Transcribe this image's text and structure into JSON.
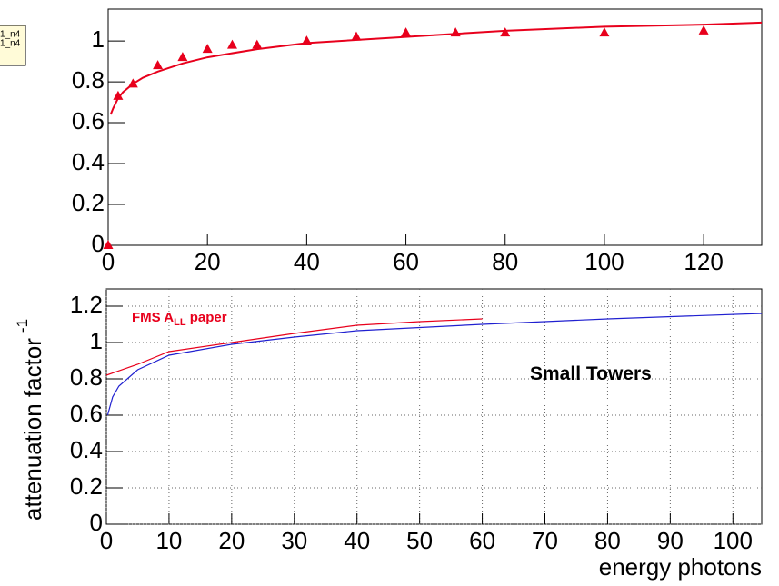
{
  "chart_data": [
    {
      "type": "scatter",
      "stats_box": [
        "1_n4",
        "1_n4"
      ],
      "xlim": [
        0,
        131.7
      ],
      "ylim": [
        0,
        1.156
      ],
      "xticks": [
        0,
        20,
        40,
        60,
        80,
        100,
        120
      ],
      "yticks": [
        0,
        0.2,
        0.4,
        0.6,
        0.8,
        1
      ],
      "grid": false,
      "series": [
        {
          "style": "markers",
          "color": "#e8001c",
          "x": [
            0,
            2,
            5,
            10,
            15,
            20,
            25,
            30,
            40,
            50,
            60,
            70,
            80,
            100,
            120
          ],
          "values": [
            0,
            0.73,
            0.79,
            0.88,
            0.92,
            0.96,
            0.98,
            0.98,
            1.0,
            1.02,
            1.04,
            1.04,
            1.04,
            1.04,
            1.05
          ]
        },
        {
          "style": "line",
          "color": "#e8001c",
          "x": [
            0.5,
            1,
            2,
            3,
            5,
            7,
            10,
            15,
            20,
            30,
            40,
            60,
            80,
            100,
            120,
            131.7
          ],
          "values": [
            0.64,
            0.67,
            0.72,
            0.75,
            0.79,
            0.82,
            0.85,
            0.89,
            0.92,
            0.96,
            0.99,
            1.02,
            1.05,
            1.07,
            1.08,
            1.09
          ]
        }
      ]
    },
    {
      "type": "line",
      "xlabel": "energy photons",
      "ylabel": "attenuation factor",
      "ylabel_sup": "-1",
      "annotations": [
        {
          "text": "FMS A",
          "sub": "LL",
          "after": " paper",
          "color": "#e8001c"
        },
        {
          "text": "Small Towers",
          "color": "#000000"
        }
      ],
      "xlim": [
        0,
        104.6
      ],
      "ylim": [
        0,
        1.295
      ],
      "xticks": [
        0,
        10,
        20,
        30,
        40,
        50,
        60,
        70,
        80,
        90,
        100
      ],
      "yticks": [
        0,
        0.2,
        0.4,
        0.6,
        0.8,
        1,
        1.2
      ],
      "grid": true,
      "series": [
        {
          "style": "line",
          "color": "#e8001c",
          "x": [
            0,
            5,
            10,
            20,
            30,
            40,
            50,
            60
          ],
          "values": [
            0.82,
            0.88,
            0.95,
            1.0,
            1.05,
            1.095,
            1.115,
            1.13
          ]
        },
        {
          "style": "line",
          "color": "#2020d0",
          "x": [
            0.2,
            1,
            2,
            5,
            10,
            20,
            30,
            40,
            60,
            80,
            104.6
          ],
          "values": [
            0.6,
            0.7,
            0.76,
            0.85,
            0.93,
            0.99,
            1.03,
            1.065,
            1.1,
            1.13,
            1.16
          ]
        }
      ]
    }
  ]
}
